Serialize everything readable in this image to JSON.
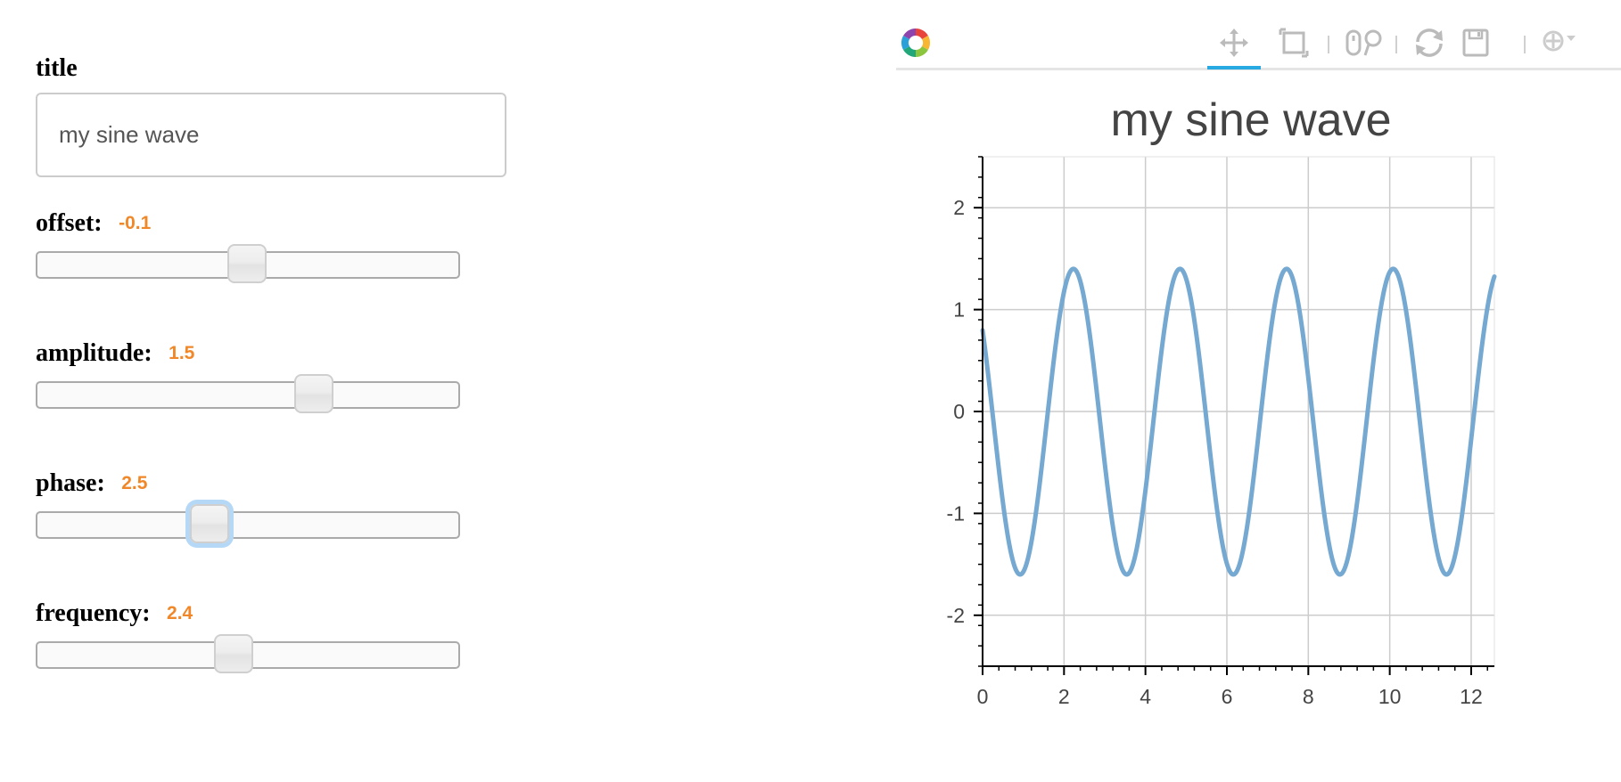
{
  "widgets": {
    "title": {
      "label": "title",
      "value": "my sine wave"
    },
    "sliders": [
      {
        "key": "offset",
        "label": "offset:",
        "value": "-0.1",
        "min": -5,
        "max": 5,
        "current": -0.1
      },
      {
        "key": "amplitude",
        "label": "amplitude:",
        "value": "1.5",
        "min": -5,
        "max": 5,
        "current": 1.5
      },
      {
        "key": "phase",
        "label": "phase:",
        "value": "2.5",
        "min": 0,
        "max": 12.57,
        "current": 2.5
      },
      {
        "key": "frequency",
        "label": "frequency:",
        "value": "2.4",
        "min": 0.1,
        "max": 5.1,
        "current": 2.4
      }
    ]
  },
  "toolbar": {
    "logo": "bokeh-logo-icon",
    "tools": [
      {
        "name": "pan-tool-icon",
        "active": true
      },
      {
        "name": "box-zoom-tool-icon",
        "active": false
      },
      {
        "name": "wheel-zoom-tool-icon",
        "active": false
      },
      {
        "name": "reset-tool-icon",
        "active": false
      },
      {
        "name": "save-tool-icon",
        "active": false
      },
      {
        "name": "hover-tool-icon",
        "active": false
      }
    ],
    "colors": {
      "active": "#26aae1",
      "icon": "#bbbbbb"
    }
  },
  "chart_data": {
    "type": "line",
    "title": "my sine wave",
    "xlabel": "",
    "ylabel": "",
    "xlim": [
      0,
      12.57
    ],
    "ylim": [
      -2.5,
      2.5
    ],
    "xticks": [
      "0",
      "2",
      "4",
      "6",
      "8",
      "10",
      "12"
    ],
    "yticks": [
      "-2",
      "-1",
      "0",
      "1",
      "2"
    ],
    "grid": true,
    "series": [
      {
        "color": "#76a9d1",
        "function": "y = 1.5 * sin(2.4 * x + 2.5) - 0.1",
        "amplitude": 1.5,
        "frequency": 2.4,
        "phase": 2.5,
        "offset": -0.1
      }
    ]
  }
}
